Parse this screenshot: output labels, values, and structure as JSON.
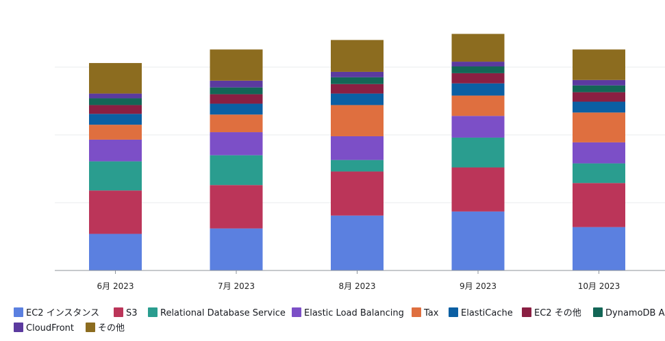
{
  "chart_data": {
    "type": "bar",
    "stacked": true,
    "categories": [
      "6月 2023",
      "7月 2023",
      "8月 2023",
      "9月 2023",
      "10月 2023"
    ],
    "ylim": [
      0,
      300
    ],
    "y_gridlines": [
      100,
      200,
      300
    ],
    "legend_position": "bottom",
    "series": [
      {
        "name": "EC2 インスタンス",
        "color": "#5b80e0",
        "values": [
          54,
          62,
          81,
          87,
          64
        ]
      },
      {
        "name": "S3",
        "color": "#bb3559",
        "values": [
          64,
          64,
          65,
          65,
          65
        ]
      },
      {
        "name": "Relational Database Service",
        "color": "#2a9d8f",
        "values": [
          43,
          44,
          17,
          44,
          29
        ]
      },
      {
        "name": "Elastic Load Balancing",
        "color": "#7c4fc7",
        "values": [
          32,
          34,
          35,
          32,
          31
        ]
      },
      {
        "name": "Tax",
        "color": "#df6f3f",
        "values": [
          22,
          26,
          46,
          30,
          44
        ]
      },
      {
        "name": "ElastiCache",
        "color": "#0b5fa3",
        "values": [
          16,
          16,
          17,
          18,
          16
        ]
      },
      {
        "name": "EC2 その他",
        "color": "#8a1f42",
        "values": [
          13,
          14,
          14,
          15,
          14
        ]
      },
      {
        "name": "DynamoDB Ac",
        "color": "#136656",
        "values": [
          10,
          10,
          10,
          10,
          10
        ]
      },
      {
        "name": "CloudFront",
        "color": "#5b3a9f",
        "values": [
          7,
          10,
          8,
          7,
          8
        ]
      },
      {
        "name": "その他",
        "color": "#8c6c1f",
        "values": [
          45,
          46,
          47,
          41,
          45
        ]
      }
    ]
  }
}
